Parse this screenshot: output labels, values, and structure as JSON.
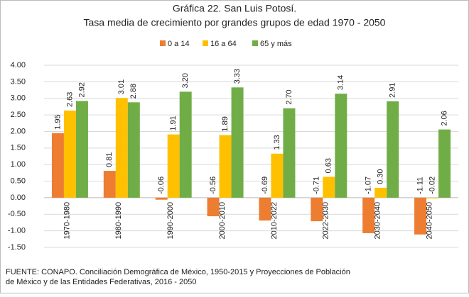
{
  "chart_data": {
    "type": "bar",
    "title": "Gráfica 22. San Luis Potosí.",
    "subtitle": "Tasa media de crecimiento por grandes grupos de edad 1970 - 2050",
    "categories": [
      "1970-1980",
      "1980-1990",
      "1990-2000",
      "2000-2010",
      "2010-2022",
      "2022-2030",
      "2030-2040",
      "2040-2050"
    ],
    "series": [
      {
        "name": "0 a 14",
        "color": "#ED7D31",
        "values": [
          1.95,
          0.81,
          -0.06,
          -0.56,
          -0.69,
          -0.71,
          -1.07,
          -1.11
        ],
        "value_labels": [
          "1.95",
          "0.81",
          "-0.06",
          "-0.56",
          "-0.69",
          "-0.71",
          "-1.07",
          "-1.11"
        ]
      },
      {
        "name": "16 a 64",
        "color": "#FFC000",
        "values": [
          2.63,
          3.01,
          1.91,
          1.89,
          1.33,
          0.63,
          0.3,
          -0.02
        ],
        "value_labels": [
          "2.63",
          "3.01",
          "1.91",
          "1.89",
          "1.33",
          "0.63",
          "0.30",
          "-0.02"
        ]
      },
      {
        "name": "65 y más",
        "color": "#70AD47",
        "values": [
          2.92,
          2.88,
          3.2,
          3.33,
          2.7,
          3.14,
          2.91,
          2.06
        ],
        "value_labels": [
          "2.92",
          "2.88",
          "3.20",
          "3.33",
          "2.70",
          "3.14",
          "2.91",
          "2.06"
        ]
      }
    ],
    "ylim": [
      -1.5,
      4
    ],
    "yticks": [
      {
        "value": -1.5,
        "label": "-1.50"
      },
      {
        "value": -1,
        "label": "-1.00"
      },
      {
        "value": -0.5,
        "label": "-0.50"
      },
      {
        "value": 0,
        "label": "0.00"
      },
      {
        "value": 0.5,
        "label": "0.50"
      },
      {
        "value": 1,
        "label": "1.00"
      },
      {
        "value": 1.5,
        "label": "1.50"
      },
      {
        "value": 2,
        "label": "2.00"
      },
      {
        "value": 2.5,
        "label": "2.50"
      },
      {
        "value": 3,
        "label": "3.00"
      },
      {
        "value": 3.5,
        "label": "3.50"
      },
      {
        "value": 4,
        "label": "4.00"
      }
    ],
    "grid": true,
    "legend": "top",
    "source": [
      "FUENTE: CONAPO. Conciliación Demográfica de México, 1950-2015 y Proyecciones de Población",
      "de México y de las Entidades Federativas, 2016 - 2050"
    ]
  }
}
